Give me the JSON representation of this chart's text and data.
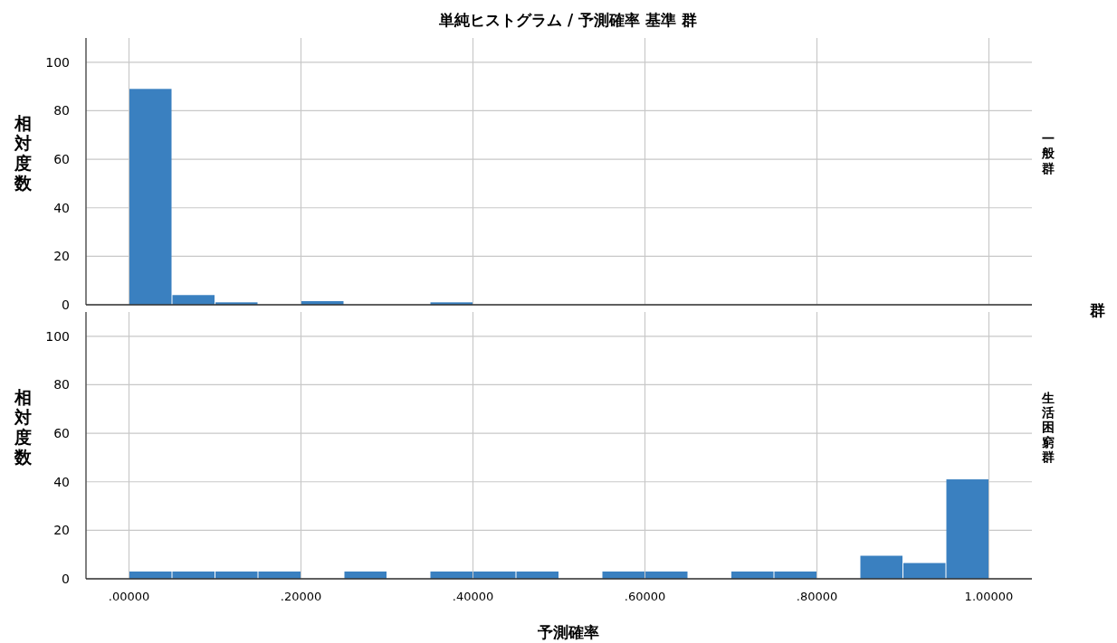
{
  "chart_data": [
    {
      "type": "histogram",
      "title": "単純ヒストグラム / 予測確率 基準 群",
      "ylabel": "相対度数",
      "y2label": "一般群",
      "annotations": [
        "群"
      ],
      "color": "#3a80c0",
      "bins": [
        0,
        0.05,
        0.1,
        0.15,
        0.2,
        0.25,
        0.3,
        0.35,
        0.4,
        0.45,
        0.5,
        0.55,
        0.6,
        0.65,
        0.7,
        0.75,
        0.8,
        0.85,
        0.9,
        0.95,
        1.0
      ],
      "values": [
        89,
        4,
        1,
        0,
        1.5,
        0,
        0,
        1,
        0,
        0,
        0,
        0,
        0,
        0,
        0,
        0,
        0,
        0,
        0,
        0
      ],
      "xlim": [
        -0.05,
        1.05
      ],
      "xticks": [
        0,
        0.2,
        0.4,
        0.6,
        0.8,
        1
      ],
      "ylim": [
        0,
        110
      ],
      "yticks": [
        0,
        20,
        40,
        60,
        80,
        100
      ],
      "grid": true,
      "tick_labels": "y"
    },
    {
      "type": "histogram",
      "xlabel": "予測確率",
      "ylabel": "相対度数",
      "y2label": "生活困窮群",
      "color": "#3a80c0",
      "bins": [
        0,
        0.05,
        0.1,
        0.15,
        0.2,
        0.25,
        0.3,
        0.35,
        0.4,
        0.45,
        0.5,
        0.55,
        0.6,
        0.65,
        0.7,
        0.75,
        0.8,
        0.85,
        0.9,
        0.95,
        1.0
      ],
      "values": [
        3,
        3,
        3,
        3,
        0,
        3,
        0,
        3,
        3,
        3,
        0,
        3,
        3,
        0,
        3,
        3,
        0,
        9.5,
        6.5,
        41
      ],
      "xlim": [
        -0.05,
        1.05
      ],
      "xticks": [
        {
          "value": 0,
          "label": ".00000"
        },
        {
          "value": 0.2,
          "label": ".20000"
        },
        {
          "value": 0.4,
          "label": ".40000"
        },
        {
          "value": 0.6,
          "label": ".60000"
        },
        {
          "value": 0.8,
          "label": ".80000"
        },
        {
          "value": 1,
          "label": "1.00000"
        }
      ],
      "ylim": [
        0,
        110
      ],
      "yticks": [
        0,
        20,
        40,
        60,
        80,
        100
      ],
      "grid": true
    }
  ]
}
